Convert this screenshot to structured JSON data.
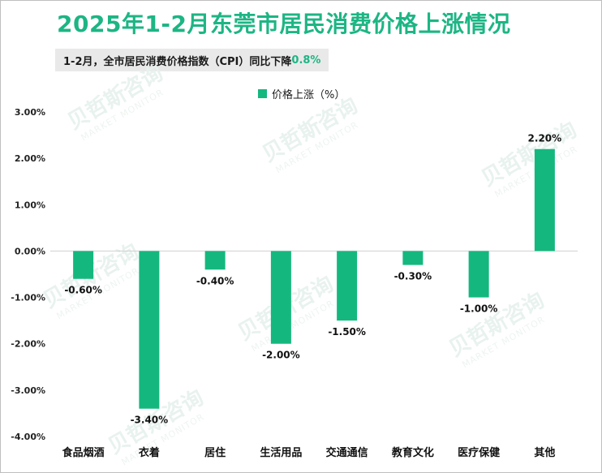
{
  "title": "2025年1-2月东莞市居民消费价格上涨情况",
  "subtitle": {
    "text": "1-2月，全市居民消费价格指数（CPI）同比下降",
    "value": "0.8%"
  },
  "watermark": {
    "brand": "贝哲斯咨询",
    "tagline": "MARKET MONITOR"
  },
  "colors": {
    "bar": "#14b87e",
    "title": "#1db584",
    "subtitle_bg": "#e9e9e9"
  },
  "chart_data": {
    "type": "bar",
    "categories": [
      "食品烟酒",
      "衣着",
      "居住",
      "生活用品",
      "交通通信",
      "教育文化",
      "医疗保健",
      "其他"
    ],
    "series": [
      {
        "name": "价格上涨（%）",
        "values": [
          -0.6,
          -3.4,
          -0.4,
          -2.0,
          -1.5,
          -0.3,
          -1.0,
          2.2
        ],
        "labels": [
          "-0.60%",
          "-3.40%",
          "-0.40%",
          "-2.00%",
          "-1.50%",
          "-0.30%",
          "-1.00%",
          "2.20%"
        ]
      }
    ],
    "ylim": [
      -4,
      3
    ],
    "yticks": [
      3,
      2,
      1,
      0,
      -1,
      -2,
      -3,
      -4
    ],
    "ytick_labels": [
      "3.00%",
      "2.00%",
      "1.00%",
      "0.00%",
      "-1.00%",
      "-2.00%",
      "-3.00%",
      "-4.00%"
    ],
    "legend_position": "top-center",
    "grid": false
  }
}
